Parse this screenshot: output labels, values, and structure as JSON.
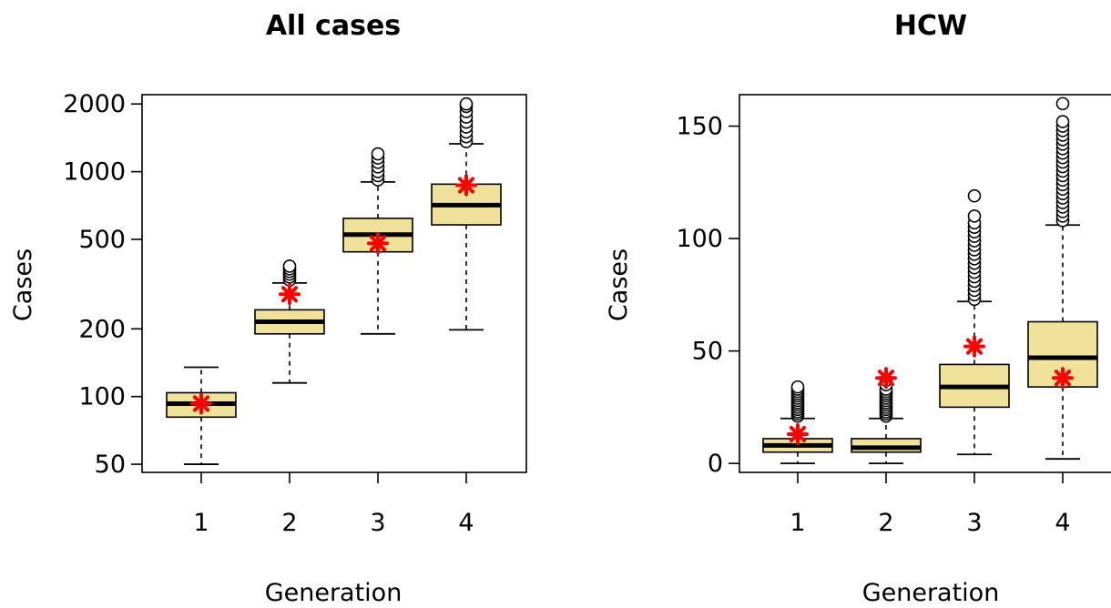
{
  "chart_data": [
    {
      "type": "boxplot",
      "title": "All cases",
      "xlabel": "Generation",
      "ylabel": "Cases",
      "y_scale": "log",
      "ylim": [
        46,
        2200
      ],
      "yticks": [
        50,
        100,
        200,
        500,
        1000,
        2000
      ],
      "categories": [
        "1",
        "2",
        "3",
        "4"
      ],
      "boxes": [
        {
          "category": "1",
          "whisker_low": 50,
          "q1": 81,
          "median": 93,
          "q3": 104,
          "whisker_high": 135,
          "outliers": []
        },
        {
          "category": "2",
          "whisker_low": 115,
          "q1": 190,
          "median": 215,
          "q3": 243,
          "whisker_high": 320,
          "outliers": [
            330,
            340,
            350,
            360,
            370,
            380
          ]
        },
        {
          "category": "3",
          "whisker_low": 190,
          "q1": 440,
          "median": 525,
          "q3": 620,
          "whisker_high": 900,
          "outliers": [
            920,
            960,
            1000,
            1050,
            1100,
            1150,
            1200
          ]
        },
        {
          "category": "4",
          "whisker_low": 198,
          "q1": 580,
          "median": 710,
          "q3": 880,
          "whisker_high": 1330,
          "outliers": [
            1360,
            1430,
            1500,
            1580,
            1660,
            1750,
            1850,
            1950,
            2000
          ]
        }
      ],
      "observed": [
        93,
        285,
        480,
        870
      ],
      "grid": false,
      "box_fill": "#f0e29a",
      "observed_color": "#ff0000"
    },
    {
      "type": "boxplot",
      "title": "HCW",
      "xlabel": "Generation",
      "ylabel": "Cases",
      "y_scale": "linear",
      "ylim": [
        -4,
        164
      ],
      "yticks": [
        0,
        50,
        100,
        150
      ],
      "categories": [
        "1",
        "2",
        "3",
        "4"
      ],
      "boxes": [
        {
          "category": "1",
          "whisker_low": 0,
          "q1": 5,
          "median": 8,
          "q3": 11,
          "whisker_high": 20,
          "outliers": [
            21,
            22,
            23,
            24,
            25,
            26,
            27,
            28,
            29,
            30,
            31,
            32,
            33,
            34
          ]
        },
        {
          "category": "2",
          "whisker_low": 0,
          "q1": 5,
          "median": 7,
          "q3": 11,
          "whisker_high": 20,
          "outliers": [
            21,
            22,
            23,
            24,
            25,
            26,
            27,
            28,
            29,
            30,
            31,
            32,
            33,
            35,
            37
          ]
        },
        {
          "category": "3",
          "whisker_low": 4,
          "q1": 25,
          "median": 34,
          "q3": 44,
          "whisker_high": 72,
          "outliers": [
            73,
            75,
            77,
            79,
            81,
            83,
            85,
            87,
            89,
            91,
            93,
            95,
            97,
            99,
            101,
            103,
            105,
            107,
            110,
            119
          ]
        },
        {
          "category": "4",
          "whisker_low": 2,
          "q1": 34,
          "median": 47,
          "q3": 63,
          "whisker_high": 106,
          "outliers": [
            108,
            110,
            112,
            114,
            116,
            118,
            120,
            122,
            124,
            126,
            128,
            130,
            132,
            134,
            136,
            138,
            140,
            142,
            144,
            146,
            148,
            150,
            152,
            160
          ]
        }
      ],
      "observed": [
        13,
        38,
        52,
        38
      ],
      "grid": false,
      "box_fill": "#f0e29a",
      "observed_color": "#ff0000"
    }
  ]
}
